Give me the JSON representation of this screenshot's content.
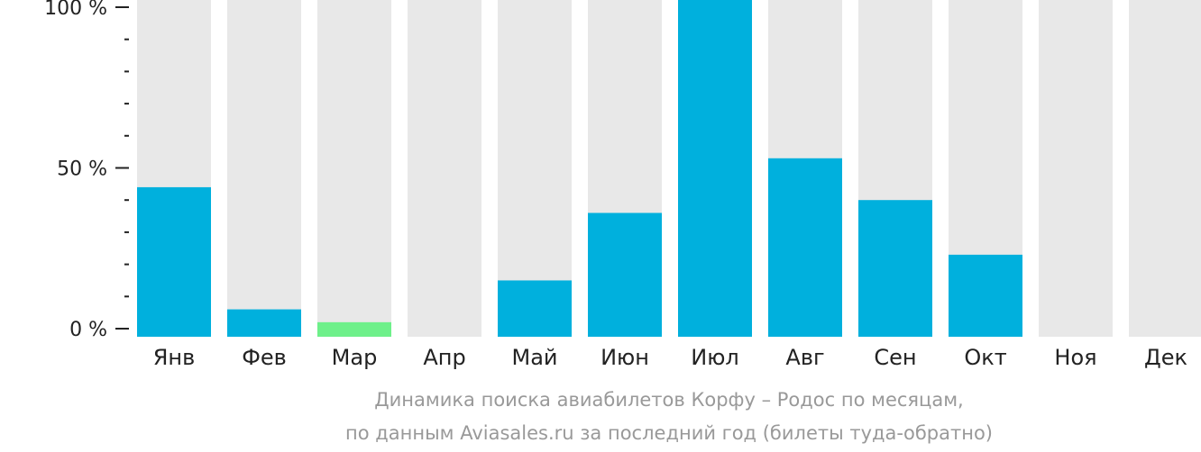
{
  "chart_data": {
    "type": "bar",
    "categories": [
      "Янв",
      "Фев",
      "Мар",
      "Апр",
      "Май",
      "Июн",
      "Июл",
      "Авг",
      "Сен",
      "Окт",
      "Ноя",
      "Дек"
    ],
    "values": [
      44,
      6,
      2,
      0,
      15,
      36,
      100,
      53,
      40,
      23,
      0,
      0
    ],
    "highlight_index": 2,
    "ylim": [
      0,
      100
    ],
    "yticks": [
      {
        "value": 0,
        "label": "0 %"
      },
      {
        "value": 50,
        "label": "50 %"
      },
      {
        "value": 100,
        "label": "100 %"
      }
    ],
    "minor_ticks_per_segment": 5,
    "colors": {
      "bar": "#00b0dd",
      "highlight": "#6ef08a",
      "background_bar": "#e8e8e8",
      "axis": "#222222"
    },
    "caption": {
      "line1": "Динамика поиска авиабилетов Корфу – Родос по месяцам,",
      "line2": "по данным Aviasales.ru за последний год (билеты туда-обратно)"
    }
  }
}
